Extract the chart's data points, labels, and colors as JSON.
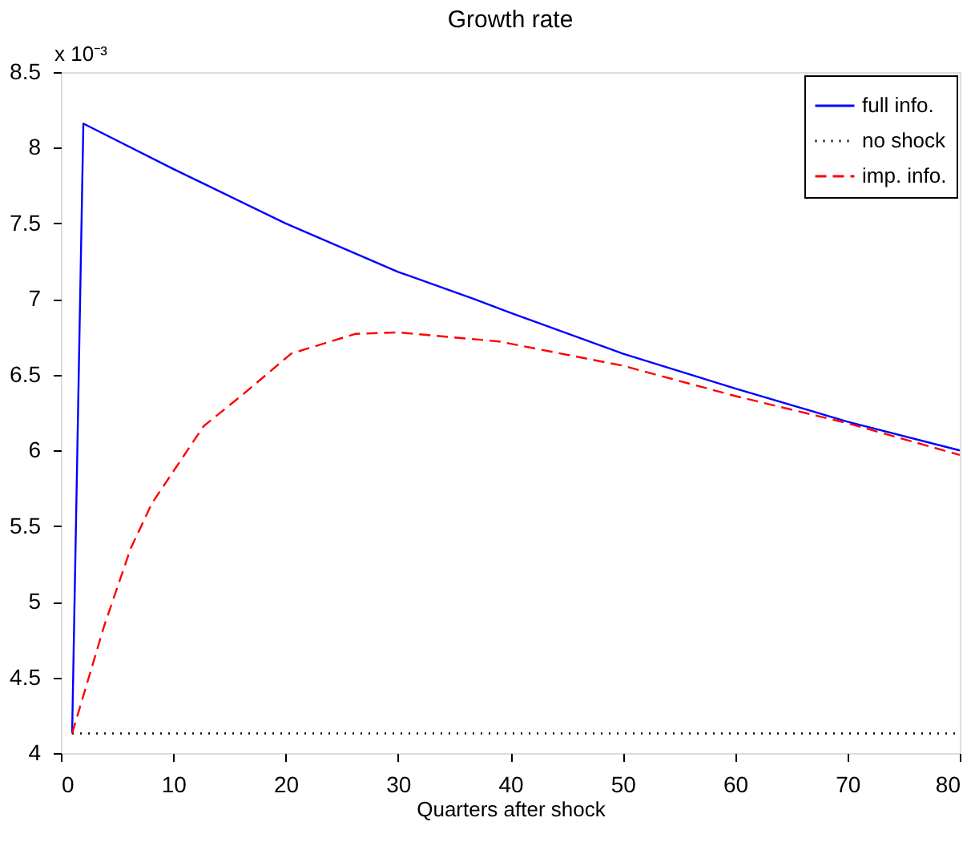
{
  "chart_data": {
    "type": "line",
    "title": "Growth rate",
    "xlabel": "Quarters after shock",
    "annotations": [
      "x 10⁻³"
    ],
    "xlim": [
      0,
      80
    ],
    "ylim": [
      4,
      8.5
    ],
    "xticks": [
      0,
      10,
      20,
      30,
      40,
      50,
      60,
      70,
      80
    ],
    "yticks": [
      4,
      4.5,
      5,
      5.5,
      6,
      6.5,
      7,
      7.5,
      8,
      8.5
    ],
    "legend": "top right",
    "series": [
      {
        "name": "full info.",
        "color": "#0000ff",
        "line_style": "solid",
        "x": [
          1,
          2,
          10,
          20,
          30,
          36.8,
          40,
          50,
          60,
          70,
          80
        ],
        "values": [
          4.13,
          8.16,
          7.86,
          7.5,
          7.18,
          7.0,
          6.91,
          6.64,
          6.41,
          6.19,
          6.0
        ]
      },
      {
        "name": "no shock",
        "color": "#000000",
        "line_style": "dotted",
        "x": [
          1,
          80
        ],
        "values": [
          4.13,
          4.13
        ]
      },
      {
        "name": "imp. info.",
        "color": "#ff0000",
        "line_style": "dashed",
        "x": [
          1,
          3.85,
          6.2,
          8.1,
          12.7,
          16.2,
          20.5,
          26.2,
          30,
          39,
          50,
          60,
          70,
          80
        ],
        "values": [
          4.13,
          4.84,
          5.35,
          5.65,
          6.16,
          6.37,
          6.64,
          6.77,
          6.78,
          6.72,
          6.56,
          6.36,
          6.18,
          5.97
        ]
      }
    ]
  }
}
